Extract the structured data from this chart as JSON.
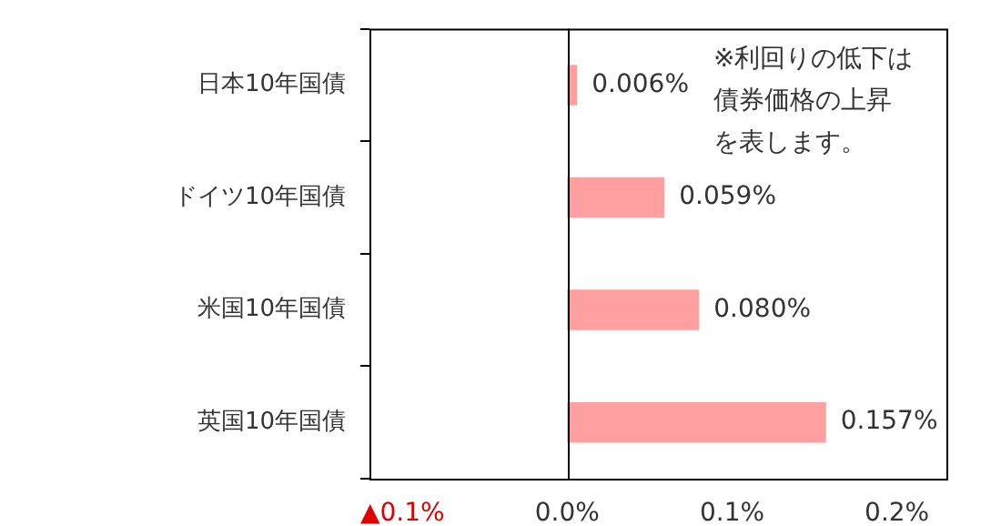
{
  "chart_data": {
    "type": "bar",
    "orientation": "horizontal",
    "categories": [
      "日本10年国債",
      "ドイツ10年国債",
      "米国10年国債",
      "英国10年国債"
    ],
    "values": [
      0.006,
      0.059,
      0.08,
      0.157
    ],
    "value_labels": [
      "0.006%",
      "0.059%",
      "0.080%",
      "0.157%"
    ],
    "color": "#ff9f9f",
    "xlim": [
      -0.12,
      0.23
    ],
    "xticks": [
      {
        "value": -0.1,
        "label": "▲0.1%"
      },
      {
        "value": 0,
        "label": "0.0%"
      },
      {
        "value": 0.1,
        "label": "0.1%"
      },
      {
        "value": 0.2,
        "label": "0.2%"
      }
    ],
    "annotations": [
      "※利回りの低下は債券価格の上昇を表します。"
    ]
  }
}
